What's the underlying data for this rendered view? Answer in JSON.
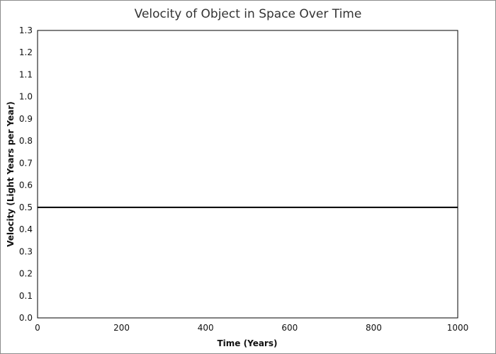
{
  "chart_data": {
    "type": "line",
    "title": "Velocity of Object in Space Over Time",
    "xlabel": "Time (Years)",
    "ylabel": "Velocity (Light Years per Year)",
    "xlim": [
      0,
      1000
    ],
    "ylim": [
      0.0,
      1.3
    ],
    "x_ticks": [
      "0",
      "200",
      "400",
      "600",
      "800",
      "1000"
    ],
    "y_ticks": [
      "0.0",
      "0.1",
      "0.2",
      "0.3",
      "0.4",
      "0.5",
      "0.6",
      "0.7",
      "0.8",
      "0.9",
      "1.0",
      "1.1",
      "1.2",
      "1.3"
    ],
    "grid": false,
    "series": [
      {
        "x": [
          0,
          1000
        ],
        "y": [
          0.5,
          0.5
        ],
        "color": "#000000"
      }
    ]
  }
}
